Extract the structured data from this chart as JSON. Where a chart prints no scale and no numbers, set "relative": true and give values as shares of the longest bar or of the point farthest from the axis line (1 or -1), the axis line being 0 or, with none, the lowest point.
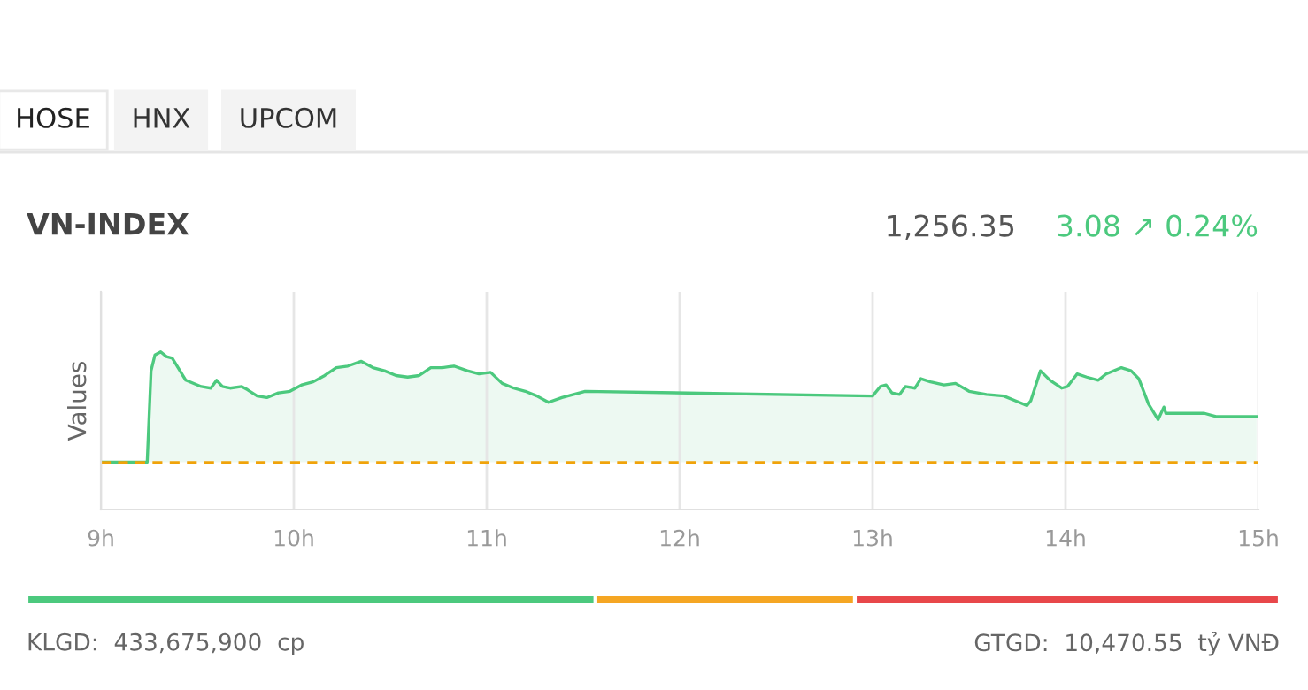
{
  "chart_data": [
    {
      "type": "area",
      "title": "VN-INDEX",
      "ylabel": "Values",
      "relative": true,
      "x": [
        9.0,
        9.24,
        9.26,
        9.28,
        9.31,
        9.34,
        9.37,
        9.4,
        9.44,
        9.52,
        9.57,
        9.6,
        9.63,
        9.67,
        9.73,
        9.76,
        9.81,
        9.86,
        9.92,
        9.98,
        10.04,
        10.1,
        10.16,
        10.22,
        10.28,
        10.35,
        10.41,
        10.47,
        10.53,
        10.59,
        10.65,
        10.71,
        10.77,
        10.83,
        10.9,
        10.96,
        11.02,
        11.08,
        11.14,
        11.2,
        11.26,
        11.32,
        11.39,
        11.45,
        11.51,
        13.0,
        13.04,
        13.07,
        13.1,
        13.14,
        13.17,
        13.22,
        13.25,
        13.3,
        13.37,
        13.43,
        13.5,
        13.59,
        13.68,
        13.74,
        13.8,
        13.82,
        13.87,
        13.92,
        13.98,
        14.01,
        14.06,
        14.11,
        14.17,
        14.21,
        14.29,
        14.34,
        14.38,
        14.43,
        14.48,
        14.51,
        14.52,
        14.72,
        14.78,
        14.99
      ],
      "series": [
        {
          "color": "#4cc97e",
          "values": [
            0.3,
            0.3,
            0.88,
            0.98,
            1.0,
            0.97,
            0.96,
            0.9,
            0.82,
            0.78,
            0.77,
            0.82,
            0.78,
            0.77,
            0.78,
            0.76,
            0.72,
            0.71,
            0.74,
            0.75,
            0.79,
            0.81,
            0.85,
            0.9,
            0.91,
            0.94,
            0.9,
            0.88,
            0.85,
            0.84,
            0.85,
            0.9,
            0.9,
            0.91,
            0.88,
            0.86,
            0.87,
            0.8,
            0.77,
            0.75,
            0.72,
            0.68,
            0.71,
            0.73,
            0.75,
            0.72,
            0.78,
            0.79,
            0.74,
            0.73,
            0.78,
            0.77,
            0.83,
            0.81,
            0.79,
            0.8,
            0.75,
            0.73,
            0.72,
            0.69,
            0.66,
            0.69,
            0.88,
            0.82,
            0.77,
            0.78,
            0.86,
            0.84,
            0.82,
            0.86,
            0.9,
            0.88,
            0.83,
            0.67,
            0.57,
            0.65,
            0.61,
            0.61,
            0.59,
            0.59
          ]
        }
      ],
      "xlim": [
        9,
        15
      ],
      "xticks": [
        {
          "value": 9,
          "label": "9h"
        },
        {
          "value": 10,
          "label": "10h"
        },
        {
          "value": 11,
          "label": "11h"
        },
        {
          "value": 12,
          "label": "12h"
        },
        {
          "value": 13,
          "label": "13h"
        },
        {
          "value": 14,
          "label": "14h"
        },
        {
          "value": 15,
          "label": "15h"
        }
      ],
      "grid": "x",
      "legend": false,
      "marker": "none",
      "line_style": "solid",
      "ref_lines": [
        {
          "axis": "y",
          "value": 0.3,
          "color": "#f0a30a",
          "line_style": "dashed"
        }
      ],
      "annotations": [
        "HOSE",
        "HNX",
        "UPCOM",
        "1,256.35",
        "3.08 ↗ 0.24%"
      ]
    },
    {
      "type": "bar",
      "orientation": "horizontal",
      "stacked": true,
      "relative": true,
      "categories": [
        null
      ],
      "series": [
        {
          "color": "#4cc97e",
          "values": [
            0.454
          ]
        },
        {
          "color": "#f5a623",
          "values": [
            0.207
          ]
        },
        {
          "color": "#e8474a",
          "values": [
            0.339
          ]
        }
      ],
      "annotations": [
        "KLGD:  433,675,900  cp",
        "GTGD:  10,470.55  tỷ VNĐ"
      ]
    }
  ]
}
